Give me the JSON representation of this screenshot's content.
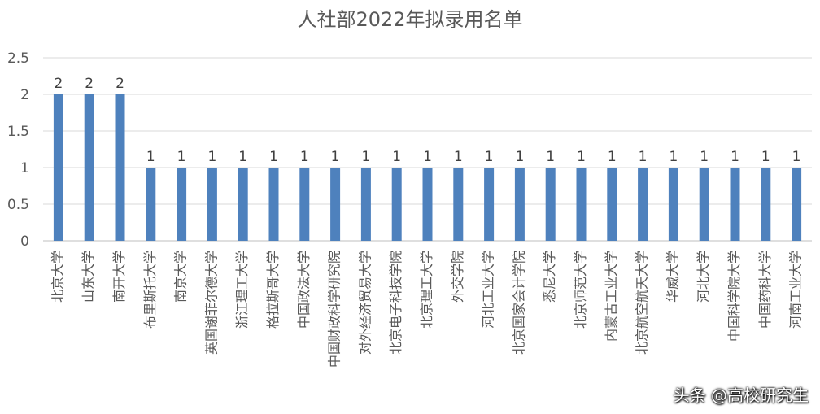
{
  "chart_data": {
    "type": "bar",
    "title": "人社部2022年拟录用名单",
    "xlabel": "",
    "ylabel": "",
    "ylim": [
      0,
      2.5
    ],
    "yticks": [
      "0",
      "0.5",
      "1",
      "1.5",
      "2",
      "2.5"
    ],
    "grid": true,
    "bar_color": "#4e81bd",
    "categories": [
      "北京大学",
      "山东大学",
      "南开大学",
      "布里斯托大学",
      "南京大学",
      "英国谢菲尔德大学",
      "浙江理工大学",
      "格拉斯哥大学",
      "中国政法大学",
      "中国财政科学研究院",
      "对外经济贸易大学",
      "北京电子科技学院",
      "北京理工大学",
      "外交学院",
      "河北工业大学",
      "北京国家会计学院",
      "悉尼大学",
      "北京师范大学",
      "内蒙古工业大学",
      "北京航空航天大学",
      "华威大学",
      "河北大学",
      "中国科学院大学",
      "中国药科大学",
      "河南工业大学"
    ],
    "values": [
      2,
      2,
      2,
      1,
      1,
      1,
      1,
      1,
      1,
      1,
      1,
      1,
      1,
      1,
      1,
      1,
      1,
      1,
      1,
      1,
      1,
      1,
      1,
      1,
      1
    ],
    "data_labels": [
      "2",
      "2",
      "2",
      "1",
      "1",
      "1",
      "1",
      "1",
      "1",
      "1",
      "1",
      "1",
      "1",
      "1",
      "1",
      "1",
      "1",
      "1",
      "1",
      "1",
      "1",
      "1",
      "1",
      "1",
      "1"
    ]
  },
  "watermark": "头条 @高校研究生"
}
